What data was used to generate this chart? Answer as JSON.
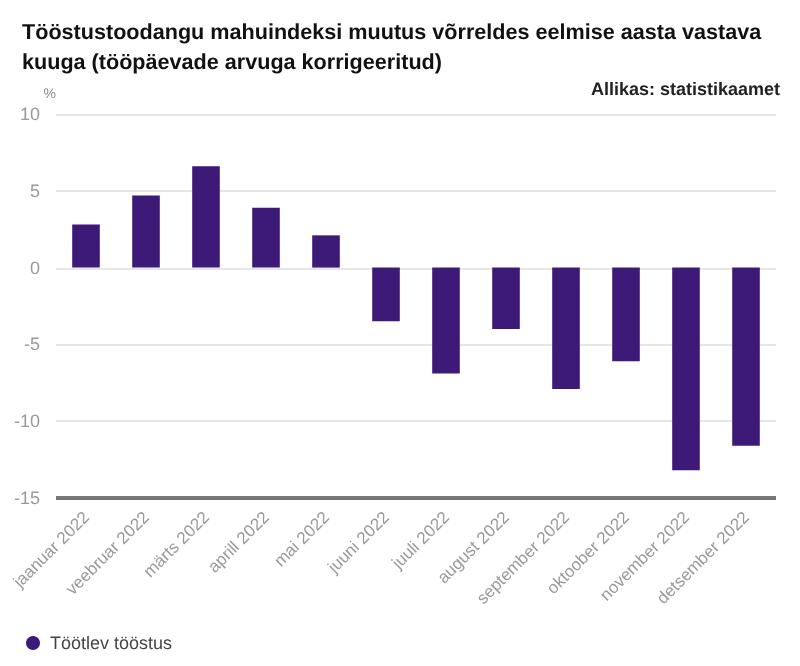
{
  "chart_data": {
    "type": "bar",
    "title": "Tööstustoodangu mahuindeksi muutus võrreldes eelmise aasta vastava\nkuuga (tööpäevade arvuga korrigeeritud)",
    "ylabel": "%",
    "annotations": [
      "Allikas: statistikaamet"
    ],
    "categories": [
      "jaanuar 2022",
      "veebruar 2022",
      "märts 2022",
      "aprill 2022",
      "mai 2022",
      "juuni 2022",
      "juuli 2022",
      "august 2022",
      "september 2022",
      "oktoober 2022",
      "november 2022",
      "detsember 2022"
    ],
    "series": [
      {
        "name": "Töötlev tööstus",
        "color": "#3d1a78",
        "values": [
          2.8,
          4.7,
          6.6,
          3.9,
          2.1,
          -3.5,
          -6.9,
          -4.0,
          -7.9,
          -6.1,
          -13.2,
          -11.6
        ]
      }
    ],
    "ylim": [
      -15,
      10
    ],
    "yticks": [
      -15,
      -10,
      -5,
      0,
      5,
      10
    ],
    "grid": "y",
    "legend": "bottom left"
  }
}
